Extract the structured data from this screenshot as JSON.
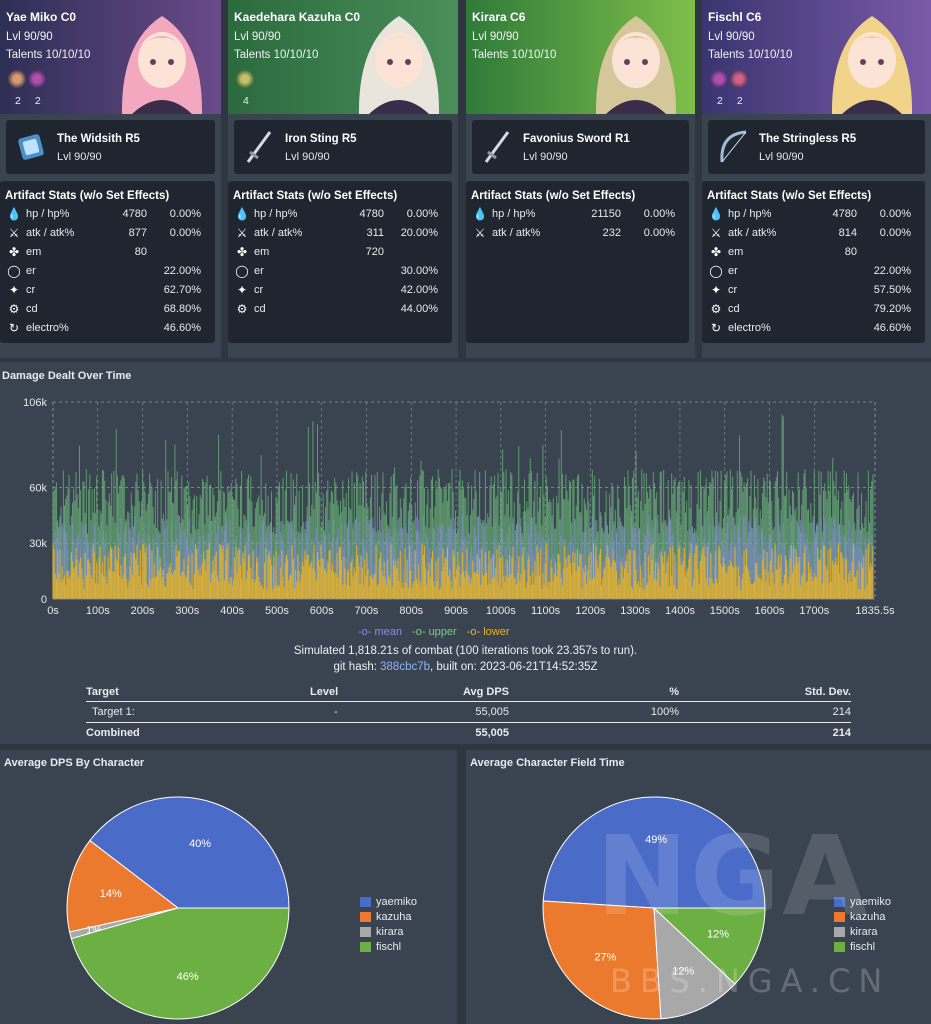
{
  "characters": [
    {
      "name": "Yae Miko C0",
      "level": "Lvl 90/90",
      "talents": "Talents 10/10/10",
      "set_counts": [
        "2",
        "2"
      ],
      "weapon": {
        "name": "The Widsith R5",
        "level": "Lvl 90/90",
        "icon": "catalyst-icon"
      },
      "artifact_title": "Artifact Stats (w/o Set Effects)",
      "stats": [
        {
          "icon": "hp-drop-icon",
          "label": "hp / hp%",
          "v1": "4780",
          "v2": "0.00%"
        },
        {
          "icon": "sword-icon",
          "label": "atk / atk%",
          "v1": "877",
          "v2": "0.00%"
        },
        {
          "icon": "em-atom-icon",
          "label": "em",
          "v1": "80",
          "v2": ""
        },
        {
          "icon": "energy-ring-icon",
          "label": "er",
          "v1": "",
          "v2": "22.00%"
        },
        {
          "icon": "crit-star-icon",
          "label": "cr",
          "v1": "",
          "v2": "62.70%"
        },
        {
          "icon": "crit-dmg-icon",
          "label": "cd",
          "v1": "",
          "v2": "68.80%"
        },
        {
          "icon": "electro-icon",
          "label": "electro%",
          "v1": "",
          "v2": "46.60%"
        }
      ]
    },
    {
      "name": "Kaedehara Kazuha C0",
      "level": "Lvl 90/90",
      "talents": "Talents 10/10/10",
      "set_counts": [
        "4"
      ],
      "weapon": {
        "name": "Iron Sting R5",
        "level": "Lvl 90/90",
        "icon": "sword-weapon-icon"
      },
      "artifact_title": "Artifact Stats (w/o Set Effects)",
      "stats": [
        {
          "icon": "hp-drop-icon",
          "label": "hp / hp%",
          "v1": "4780",
          "v2": "0.00%"
        },
        {
          "icon": "sword-icon",
          "label": "atk / atk%",
          "v1": "311",
          "v2": "20.00%"
        },
        {
          "icon": "em-atom-icon",
          "label": "em",
          "v1": "720",
          "v2": ""
        },
        {
          "icon": "energy-ring-icon",
          "label": "er",
          "v1": "",
          "v2": "30.00%"
        },
        {
          "icon": "crit-star-icon",
          "label": "cr",
          "v1": "",
          "v2": "42.00%"
        },
        {
          "icon": "crit-dmg-icon",
          "label": "cd",
          "v1": "",
          "v2": "44.00%"
        }
      ]
    },
    {
      "name": "Kirara C6",
      "level": "Lvl 90/90",
      "talents": "Talents 10/10/10",
      "set_counts": [],
      "weapon": {
        "name": "Favonius Sword R1",
        "level": "Lvl 90/90",
        "icon": "sword-weapon-icon"
      },
      "artifact_title": "Artifact Stats (w/o Set Effects)",
      "stats": [
        {
          "icon": "hp-drop-icon",
          "label": "hp / hp%",
          "v1": "21150",
          "v2": "0.00%"
        },
        {
          "icon": "sword-icon",
          "label": "atk / atk%",
          "v1": "232",
          "v2": "0.00%"
        }
      ]
    },
    {
      "name": "Fischl C6",
      "level": "Lvl 90/90",
      "talents": "Talents 10/10/10",
      "set_counts": [
        "2",
        "2"
      ],
      "weapon": {
        "name": "The Stringless R5",
        "level": "Lvl 90/90",
        "icon": "bow-icon"
      },
      "artifact_title": "Artifact Stats (w/o Set Effects)",
      "stats": [
        {
          "icon": "hp-drop-icon",
          "label": "hp / hp%",
          "v1": "4780",
          "v2": "0.00%"
        },
        {
          "icon": "sword-icon",
          "label": "atk / atk%",
          "v1": "814",
          "v2": "0.00%"
        },
        {
          "icon": "em-atom-icon",
          "label": "em",
          "v1": "80",
          "v2": ""
        },
        {
          "icon": "energy-ring-icon",
          "label": "er",
          "v1": "",
          "v2": "22.00%"
        },
        {
          "icon": "crit-star-icon",
          "label": "cr",
          "v1": "",
          "v2": "57.50%"
        },
        {
          "icon": "crit-dmg-icon",
          "label": "cd",
          "v1": "",
          "v2": "79.20%"
        },
        {
          "icon": "electro-icon",
          "label": "electro%",
          "v1": "",
          "v2": "46.60%"
        }
      ]
    }
  ],
  "damage": {
    "title": "Damage Dealt Over Time",
    "y_ticks": [
      "0",
      "30k",
      "60k",
      "106k"
    ],
    "x_ticks": [
      "0s",
      "100s",
      "200s",
      "300s",
      "400s",
      "500s",
      "600s",
      "700s",
      "800s",
      "900s",
      "1000s",
      "1100s",
      "1200s",
      "1300s",
      "1400s",
      "1500s",
      "1600s",
      "1700s",
      "1835.5s"
    ],
    "legend": [
      {
        "label": "mean",
        "color": "#8a8fe0"
      },
      {
        "label": "upper",
        "color": "#7ccf8c"
      },
      {
        "label": "lower",
        "color": "#e6b32a"
      }
    ],
    "sim_prefix": "Simulated 1,818.21s of combat (100 iterations took 23.357s to run).",
    "git_label": "git hash: ",
    "git_hash": "388cbc7b",
    "built_on": ", built on: 2023-06-21T14:52:35Z"
  },
  "chart_data": [
    {
      "type": "area",
      "title": "Damage Dealt Over Time",
      "xlabel": "",
      "ylabel": "",
      "x_range": [
        0,
        1835.5
      ],
      "ylim": [
        0,
        106000
      ],
      "series": [
        {
          "name": "mean",
          "approx_level": 30000
        },
        {
          "name": "upper",
          "approx_peak": 100000
        },
        {
          "name": "lower",
          "approx_level": 20000
        }
      ]
    },
    {
      "type": "pie",
      "title": "Average DPS By Character",
      "labels": [
        "yaemiko",
        "kazuha",
        "kirara",
        "fischl"
      ],
      "values": [
        40,
        14,
        1,
        46
      ],
      "colors": [
        "#4a6bc8",
        "#ec7a2e",
        "#a8a8a8",
        "#6caf43"
      ]
    },
    {
      "type": "pie",
      "title": "Average Character Field Time",
      "labels": [
        "yaemiko",
        "kazuha",
        "kirara",
        "fischl"
      ],
      "values": [
        49,
        27,
        12,
        12
      ],
      "colors": [
        "#4a6bc8",
        "#ec7a2e",
        "#a8a8a8",
        "#6caf43"
      ]
    }
  ],
  "table": {
    "headers": [
      "Target",
      "Level",
      "Avg DPS",
      "%",
      "Std. Dev."
    ],
    "rows": [
      [
        "Target 1:",
        "-",
        "55,005",
        "100%",
        "214"
      ]
    ],
    "total": [
      "Combined",
      "",
      "55,005",
      "",
      "214"
    ]
  },
  "pies": {
    "dps_title": "Average DPS By Character",
    "field_title": "Average Character Field Time"
  },
  "watermark": {
    "logo": "NGA",
    "url": "BBS.NGA.CN"
  }
}
